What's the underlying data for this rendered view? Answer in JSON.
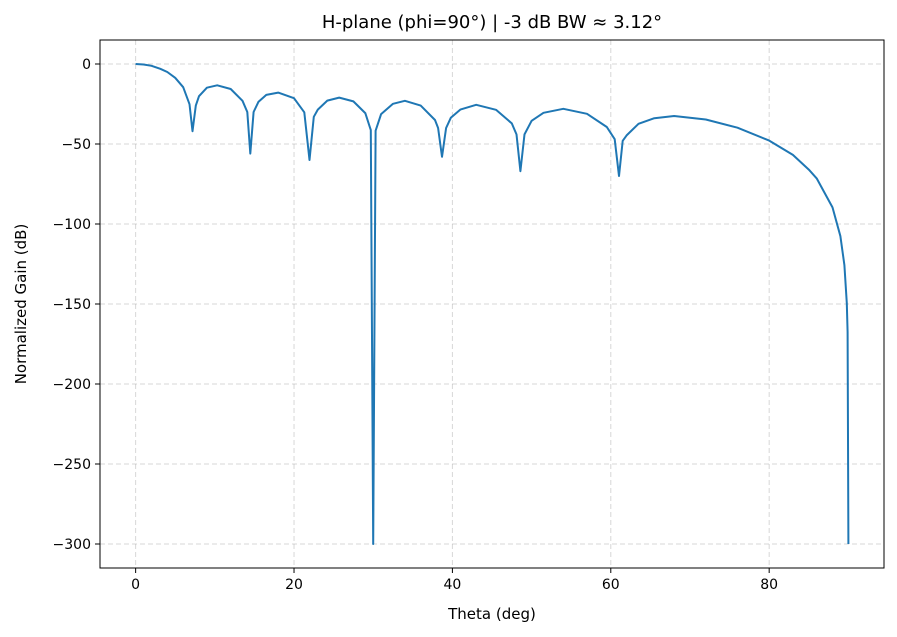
{
  "chart_data": {
    "type": "line",
    "title": "H-plane (phi=90°) |  -3 dB BW ≈ 3.12°",
    "xlabel": "Theta (deg)",
    "ylabel": "Normalized Gain (dB)",
    "xlim": [
      -4.5,
      94.5
    ],
    "ylim": [
      -315,
      15
    ],
    "xticks": [
      0,
      20,
      40,
      60,
      80
    ],
    "yticks": [
      0,
      -50,
      -100,
      -150,
      -200,
      -250,
      -300
    ],
    "xtick_labels": [
      "0",
      "20",
      "40",
      "60",
      "80"
    ],
    "ytick_labels": [
      "0",
      "−50",
      "−100",
      "−150",
      "−200",
      "−250",
      "−300"
    ],
    "grid": true,
    "line_color": "#1f77b4",
    "series": [
      {
        "x": [
          0,
          1,
          2,
          3.12,
          4,
          5,
          6,
          6.8,
          7.18,
          7.6,
          8,
          9,
          10.3,
          12,
          13.5,
          14.1,
          14.48,
          14.9,
          15.5,
          16.5,
          18,
          20,
          21.3,
          21.95,
          22.5,
          23,
          24.2,
          25.7,
          27.5,
          29,
          29.7,
          30,
          30.3,
          31,
          32.5,
          34,
          36,
          37.8,
          38.2,
          38.68,
          39.2,
          39.8,
          41,
          43,
          45.5,
          47.5,
          48.1,
          48.59,
          49.1,
          50,
          51.5,
          54,
          57,
          59.5,
          60.5,
          61.04,
          61.5,
          62,
          63.5,
          65.5,
          68,
          72,
          76,
          80,
          83,
          85,
          86,
          88,
          89,
          89.5,
          89.8,
          89.9,
          90
        ],
        "y": [
          0,
          -0.29,
          -1.15,
          -3,
          -5.0,
          -8.6,
          -14.5,
          -25.1,
          -42,
          -26,
          -20.1,
          -14.8,
          -13.3,
          -15.6,
          -23.0,
          -30,
          -56,
          -30,
          -23.7,
          -19.3,
          -17.9,
          -21.4,
          -30.2,
          -60,
          -33,
          -28.5,
          -22.9,
          -21,
          -23.4,
          -30.7,
          -41.3,
          -300,
          -41.7,
          -31.3,
          -24.9,
          -23,
          -26,
          -35,
          -40,
          -58,
          -40,
          -33.6,
          -28.5,
          -25.5,
          -28.6,
          -37.1,
          -44,
          -67,
          -44,
          -35.5,
          -30.5,
          -28,
          -31.1,
          -39.4,
          -47,
          -70,
          -48,
          -44.6,
          -37.4,
          -33.9,
          -32.5,
          -34.7,
          -39.8,
          -47.9,
          -56.8,
          -66,
          -71.5,
          -89.6,
          -107.6,
          -125.7,
          -149.5,
          -167.5,
          -300
        ]
      }
    ]
  }
}
